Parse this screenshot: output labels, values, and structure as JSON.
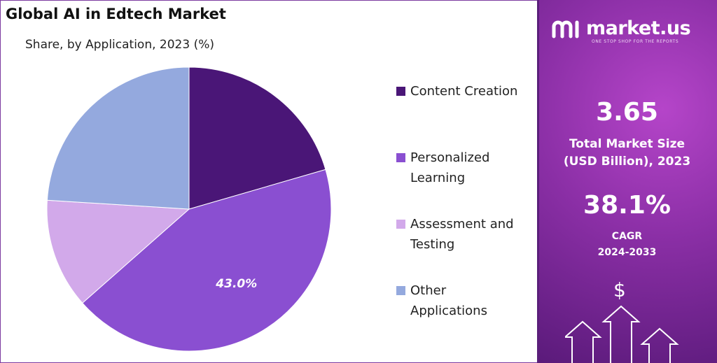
{
  "header": {
    "title": "Global AI in Edtech Market",
    "subtitle": "Share, by Application, 2023 (%)"
  },
  "chart_data": {
    "type": "pie",
    "categories": [
      "Content Creation",
      "Personalized Learning",
      "Assessment and Testing",
      "Other Applications"
    ],
    "values": [
      20.5,
      43.0,
      12.5,
      24.0
    ],
    "colors": [
      "#4a1677",
      "#8a4fd1",
      "#d2a9ea",
      "#94a9de"
    ],
    "data_labels": [
      "",
      "43.0%",
      "",
      ""
    ],
    "legend_placement": "right"
  },
  "legend": {
    "items": [
      {
        "label": "Content Creation",
        "color": "#4a1677"
      },
      {
        "label": "Personalized\nLearning",
        "color": "#8a4fd1"
      },
      {
        "label": "Assessment and\nTesting",
        "color": "#d2a9ea"
      },
      {
        "label": "Other\nApplications",
        "color": "#94a9de"
      }
    ]
  },
  "sidebar": {
    "brand": "market.us",
    "tagline": "ONE STOP SHOP FOR THE REPORTS",
    "market_size_value": "3.65",
    "market_size_label": "Total Market Size\n(USD Billion), 2023",
    "cagr_value": "38.1%",
    "cagr_label": "CAGR\n2024-2033",
    "icon_symbol": "$"
  }
}
